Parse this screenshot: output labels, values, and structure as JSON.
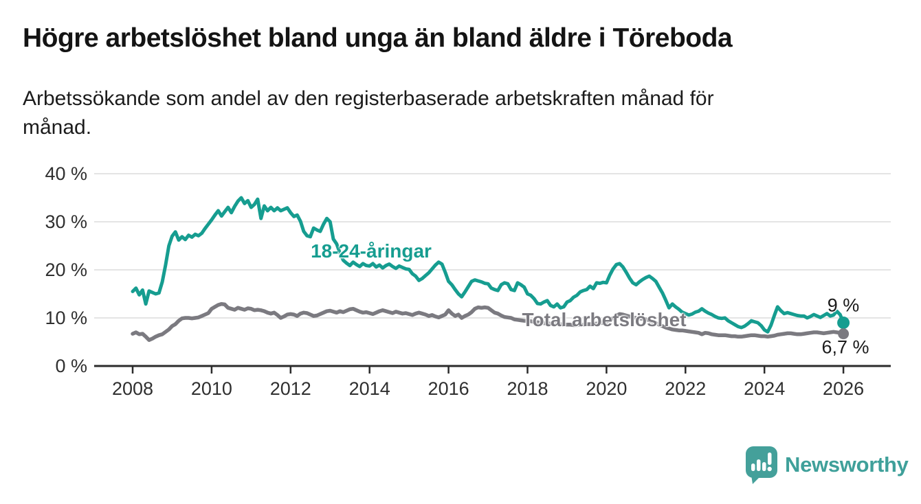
{
  "header": {
    "title": "Högre arbetslöshet bland unga än bland äldre i Töreboda",
    "subtitle_line1": "Arbetssökande som andel av den registerbaserade arbetskraften månad för",
    "subtitle_line2": "månad."
  },
  "chart_data": {
    "type": "line",
    "title": "Högre arbetslöshet bland unga än bland äldre i Töreboda",
    "subtitle": "Arbetssökande som andel av den registerbaserade arbetskraften månad för månad.",
    "x_unit": "monthly, year fractions",
    "xlim": [
      2007.0,
      2027.1
    ],
    "ylim": [
      0,
      40
    ],
    "grid": "horizontal-only",
    "legend_position": "labels-on-lines",
    "colors": {
      "grid": "#dcdcdc",
      "axis": "#2b2b2b",
      "tick_text": "#2f2f2f",
      "value_label_text": "#1a1a1a"
    },
    "y_ticks": [
      {
        "value": 0,
        "label": "0 %"
      },
      {
        "value": 10,
        "label": "10 %"
      },
      {
        "value": 20,
        "label": "20 %"
      },
      {
        "value": 30,
        "label": "30 %"
      },
      {
        "value": 40,
        "label": "40 %"
      }
    ],
    "x_ticks": [
      2008,
      2010,
      2012,
      2014,
      2016,
      2018,
      2020,
      2022,
      2024,
      2026
    ],
    "series": [
      {
        "name": "18-24-åringar",
        "label": "18-24-åringar",
        "color": "#169d90",
        "line_width": 5,
        "dot_radius": 9,
        "start_year": 2008,
        "end_label": "9 %",
        "end_value": 9.0,
        "values": [
          15.5,
          16.2,
          14.8,
          15.8,
          12.9,
          15.6,
          15.3,
          15.0,
          15.2,
          17.5,
          21.0,
          25.0,
          27.0,
          27.9,
          26.2,
          26.9,
          26.3,
          27.2,
          26.8,
          27.4,
          27.1,
          27.6,
          28.6,
          29.5,
          30.4,
          31.4,
          32.3,
          31.2,
          32.1,
          33.0,
          31.9,
          33.2,
          34.3,
          35.0,
          33.8,
          34.4,
          33.0,
          33.6,
          34.7,
          30.7,
          33.3,
          32.3,
          33.0,
          32.3,
          32.9,
          32.3,
          32.6,
          32.9,
          31.9,
          31.1,
          31.4,
          30.1,
          28.0,
          27.1,
          26.9,
          28.7,
          28.3,
          28.0,
          29.5,
          30.7,
          30.0,
          26.4,
          25.4,
          23.5,
          22.0,
          21.4,
          20.9,
          21.6,
          21.1,
          20.7,
          21.3,
          20.9,
          20.8,
          21.3,
          20.6,
          21.0,
          20.4,
          20.9,
          21.2,
          20.7,
          20.3,
          20.8,
          20.5,
          20.2,
          20.1,
          19.2,
          18.7,
          17.8,
          18.2,
          18.8,
          19.4,
          20.2,
          21.0,
          21.6,
          21.2,
          19.5,
          17.6,
          16.9,
          15.9,
          15.0,
          14.4,
          15.4,
          16.5,
          17.6,
          17.9,
          17.7,
          17.5,
          17.2,
          17.1,
          16.2,
          15.9,
          15.7,
          16.9,
          17.3,
          17.1,
          15.9,
          15.7,
          17.3,
          16.9,
          16.4,
          15.0,
          14.7,
          14.0,
          13.0,
          12.9,
          13.3,
          13.6,
          12.6,
          12.3,
          12.9,
          12.1,
          12.3,
          13.3,
          13.6,
          14.3,
          14.7,
          15.4,
          15.7,
          15.9,
          16.6,
          16.1,
          17.3,
          17.2,
          17.4,
          17.3,
          18.9,
          20.2,
          21.1,
          21.3,
          20.6,
          19.5,
          18.3,
          17.3,
          16.9,
          17.5,
          18.0,
          18.4,
          18.7,
          18.2,
          17.6,
          16.4,
          15.2,
          13.7,
          12.1,
          12.9,
          12.3,
          11.8,
          11.2,
          10.9,
          10.6,
          10.8,
          11.2,
          11.4,
          11.9,
          11.4,
          11.0,
          10.7,
          10.3,
          10.0,
          9.9,
          10.0,
          9.4,
          9.0,
          8.6,
          8.2,
          8.0,
          8.3,
          8.8,
          9.4,
          9.2,
          9.0,
          8.4,
          7.5,
          7.1,
          8.5,
          10.5,
          12.3,
          11.5,
          10.9,
          11.1,
          10.9,
          10.7,
          10.5,
          10.4,
          10.4,
          10.0,
          10.3,
          10.7,
          10.4,
          10.1,
          10.5,
          10.9,
          10.4,
          10.6,
          11.4,
          10.7,
          9.0
        ]
      },
      {
        "name": "Total arbetslöshet",
        "label": "Total arbetslöshet",
        "color": "#7b7a80",
        "line_width": 5.5,
        "dot_radius": 8,
        "start_year": 2008,
        "end_label": "6,7 %",
        "end_value": 6.7,
        "values": [
          6.7,
          7.0,
          6.6,
          6.7,
          6.1,
          5.4,
          5.7,
          6.1,
          6.4,
          6.6,
          7.1,
          7.6,
          8.3,
          8.7,
          9.4,
          9.9,
          10.0,
          10.0,
          9.9,
          10.0,
          10.1,
          10.4,
          10.7,
          11.0,
          11.9,
          12.3,
          12.7,
          12.9,
          12.8,
          12.1,
          11.9,
          11.7,
          12.1,
          11.9,
          11.7,
          12.0,
          11.9,
          11.6,
          11.7,
          11.6,
          11.4,
          11.1,
          10.9,
          11.1,
          10.6,
          10.0,
          10.3,
          10.7,
          10.8,
          10.7,
          10.4,
          10.9,
          11.1,
          11.0,
          10.7,
          10.4,
          10.5,
          10.8,
          11.1,
          11.4,
          11.5,
          11.3,
          11.1,
          11.4,
          11.2,
          11.5,
          11.8,
          11.9,
          11.6,
          11.3,
          11.1,
          11.2,
          11.0,
          10.8,
          11.1,
          11.4,
          11.6,
          11.4,
          11.2,
          11.0,
          11.3,
          11.1,
          10.9,
          11.0,
          10.8,
          10.6,
          10.9,
          11.1,
          10.9,
          10.7,
          10.4,
          10.6,
          10.3,
          10.1,
          10.4,
          10.7,
          11.6,
          10.9,
          10.4,
          10.7,
          10.0,
          10.4,
          10.7,
          11.2,
          11.9,
          12.2,
          12.1,
          12.2,
          12.1,
          11.6,
          11.1,
          10.9,
          10.5,
          10.2,
          10.1,
          10.0,
          9.7,
          9.6,
          9.5,
          9.4,
          9.4,
          9.3,
          9.2,
          9.1,
          9.0,
          8.9,
          8.9,
          8.8,
          8.8,
          8.7,
          8.7,
          8.6,
          8.6,
          8.6,
          8.5,
          8.5,
          8.6,
          8.6,
          8.7,
          8.7,
          8.8,
          8.8,
          8.9,
          9.0,
          9.2,
          9.5,
          10.0,
          10.5,
          10.8,
          10.7,
          10.5,
          10.3,
          10.1,
          10.0,
          9.9,
          9.8,
          9.7,
          9.5,
          9.2,
          8.9,
          8.6,
          8.3,
          8.0,
          7.8,
          7.6,
          7.5,
          7.4,
          7.4,
          7.3,
          7.2,
          7.1,
          7.0,
          6.9,
          6.6,
          6.9,
          6.8,
          6.6,
          6.5,
          6.4,
          6.4,
          6.4,
          6.3,
          6.2,
          6.2,
          6.1,
          6.1,
          6.2,
          6.3,
          6.4,
          6.4,
          6.3,
          6.2,
          6.2,
          6.1,
          6.2,
          6.3,
          6.5,
          6.6,
          6.7,
          6.8,
          6.8,
          6.7,
          6.6,
          6.6,
          6.7,
          6.8,
          6.9,
          7.0,
          7.0,
          6.9,
          6.8,
          6.9,
          7.0,
          7.1,
          7.0,
          6.9,
          6.7
        ]
      }
    ]
  },
  "branding": {
    "logo_text": "Newsworthy",
    "logo_color": "#3fa09a",
    "logo_icon": "speech-bubble-bar-chart-icon"
  }
}
